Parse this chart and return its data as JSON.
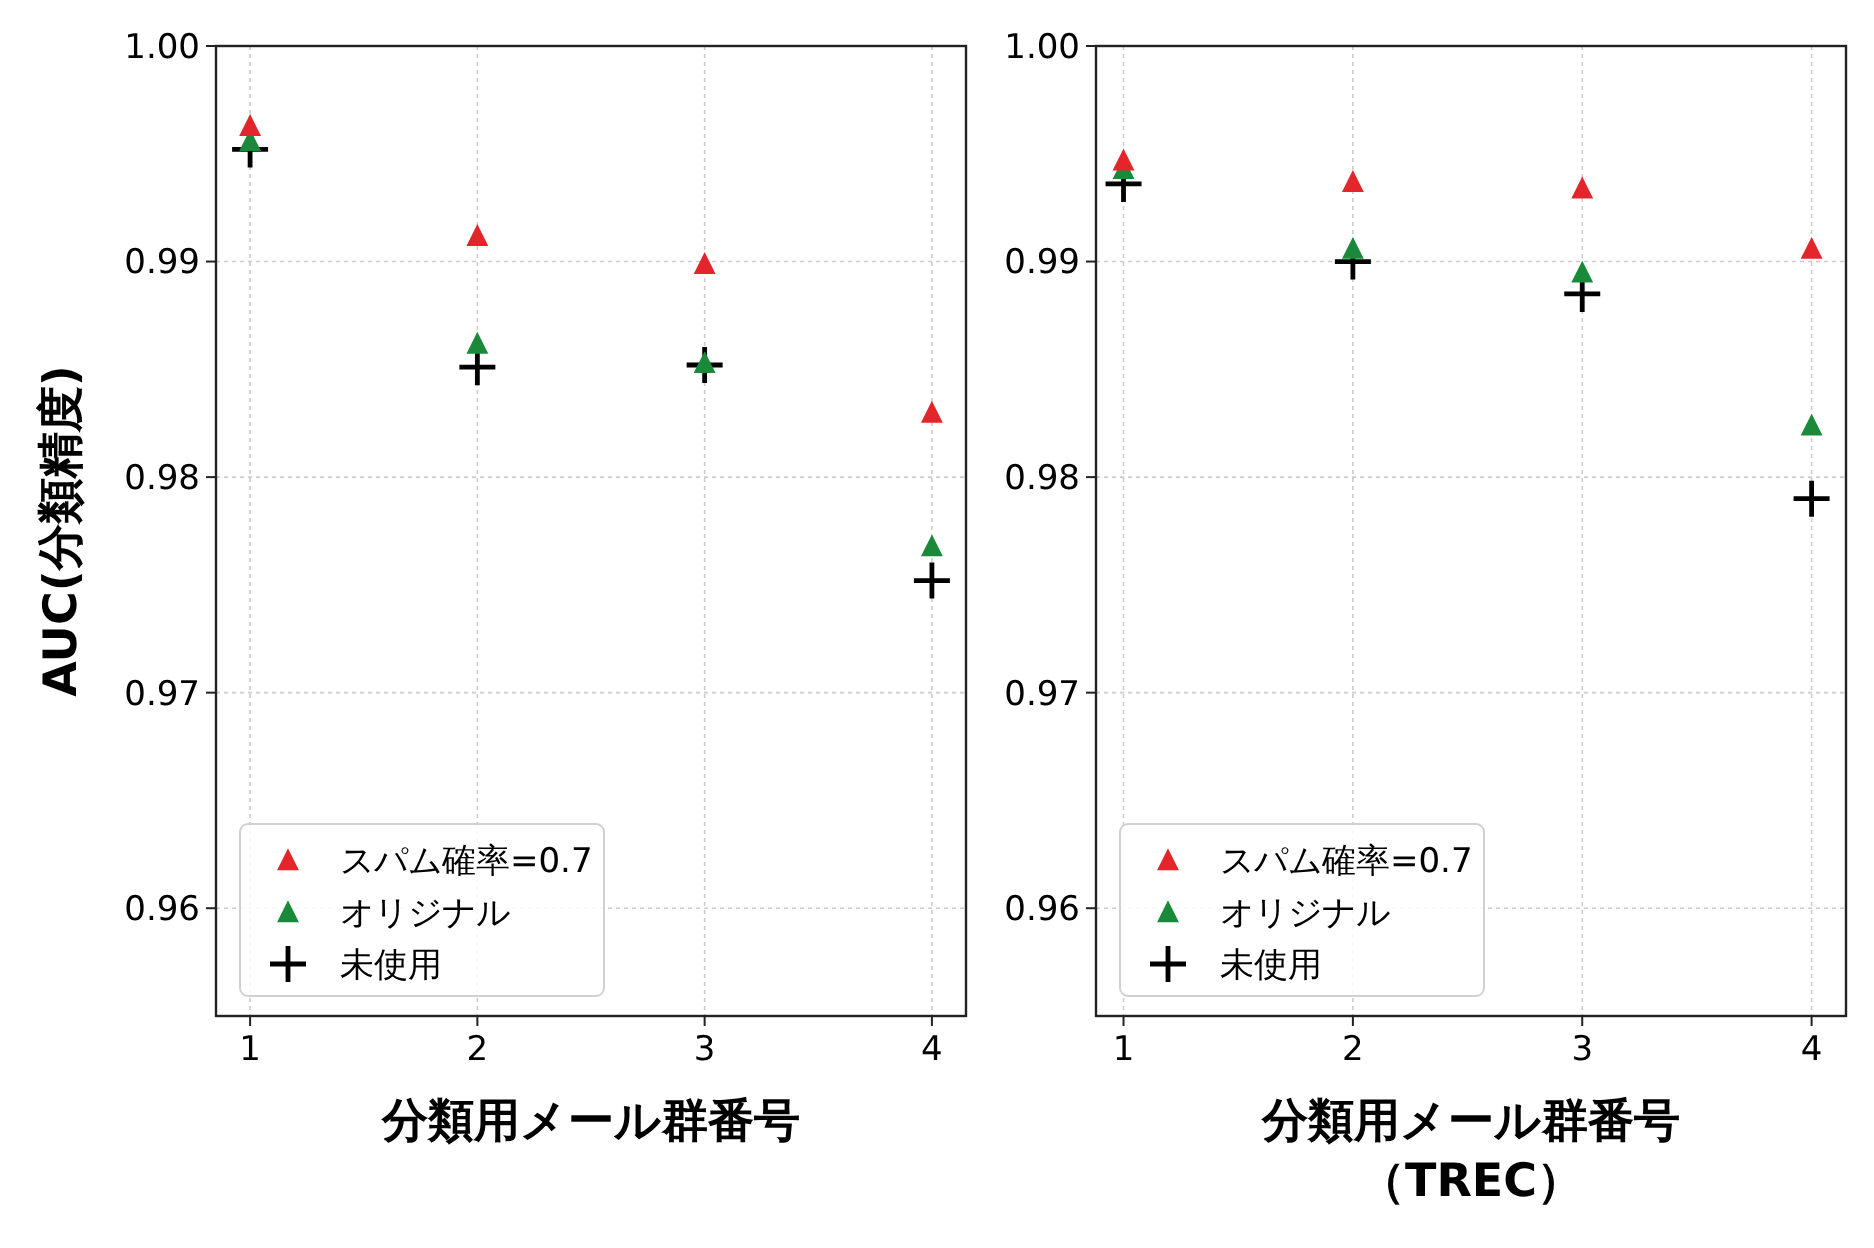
{
  "chart_data": [
    {
      "type": "scatter",
      "ylabel": "AUC(分類精度)",
      "xlabel": "分類用メール群番号",
      "x": [
        1,
        2,
        3,
        4
      ],
      "xlim": [
        0.85,
        4.15
      ],
      "xticks": [
        1,
        2,
        3,
        4
      ],
      "ylim": [
        0.955,
        1.0
      ],
      "yticks": [
        {
          "value": 0.96,
          "label": "0.96"
        },
        {
          "value": 0.97,
          "label": "0.97"
        },
        {
          "value": 0.98,
          "label": "0.98"
        },
        {
          "value": 0.99,
          "label": "0.99"
        },
        {
          "value": 1.0,
          "label": "1.00"
        }
      ],
      "grid": true,
      "legend": "bottom left",
      "series": [
        {
          "name": "スパム確率=0.7",
          "color": "#e3262b",
          "marker": "triangle",
          "values": [
            0.9963,
            0.9912,
            0.9899,
            0.983
          ]
        },
        {
          "name": "オリジナル",
          "color": "#1a8a3a",
          "marker": "triangle",
          "values": [
            0.9956,
            0.9862,
            0.9853,
            0.9768
          ]
        },
        {
          "name": "未使用",
          "color": "#000000",
          "marker": "cross",
          "values": [
            0.9952,
            0.9851,
            0.9852,
            0.9752
          ]
        }
      ]
    },
    {
      "type": "scatter",
      "xlabel": "分類用メール群番号（TREC）",
      "x": [
        1,
        2,
        3,
        4
      ],
      "xlim": [
        0.88,
        4.15
      ],
      "xticks": [
        1,
        2,
        3,
        4
      ],
      "ylim": [
        0.955,
        1.0
      ],
      "yticks": [
        {
          "value": 0.96,
          "label": "0.96"
        },
        {
          "value": 0.97,
          "label": "0.97"
        },
        {
          "value": 0.98,
          "label": "0.98"
        },
        {
          "value": 0.99,
          "label": "0.99"
        },
        {
          "value": 1.0,
          "label": "1.00"
        }
      ],
      "grid": true,
      "legend": "bottom left",
      "series": [
        {
          "name": "スパム確率=0.7",
          "color": "#e3262b",
          "marker": "triangle",
          "values": [
            0.9947,
            0.9937,
            0.9934,
            0.9906
          ]
        },
        {
          "name": "オリジナル",
          "color": "#1a8a3a",
          "marker": "triangle",
          "values": [
            0.9943,
            0.9906,
            0.9895,
            0.9824
          ]
        },
        {
          "name": "未使用",
          "color": "#000000",
          "marker": "cross",
          "values": [
            0.9936,
            0.99,
            0.9885,
            0.979
          ]
        }
      ]
    }
  ]
}
